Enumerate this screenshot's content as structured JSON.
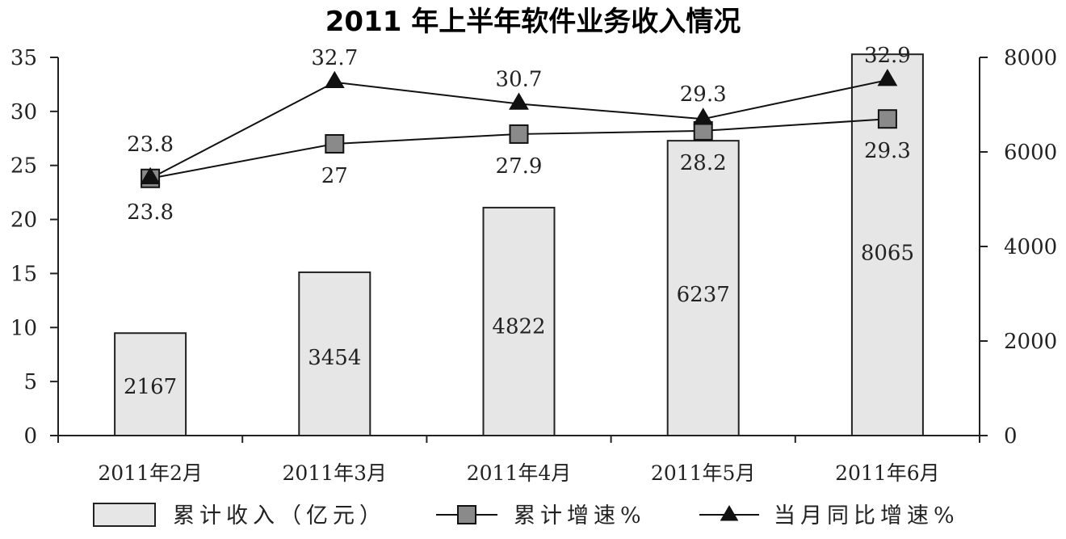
{
  "chart_data": {
    "type": "bar",
    "title": "2011 年上半年软件业务收入情况",
    "categories": [
      "2011年2月",
      "2011年3月",
      "2011年4月",
      "2011年5月",
      "2011年6月"
    ],
    "left_axis": {
      "range": [
        0,
        35
      ],
      "ticks": [
        0,
        5,
        10,
        15,
        20,
        25,
        30,
        35
      ]
    },
    "right_axis": {
      "range": [
        0,
        8000
      ],
      "ticks": [
        0,
        2000,
        4000,
        6000,
        8000
      ]
    },
    "series": [
      {
        "name": "累计收入（亿元）",
        "type": "bar",
        "axis": "right",
        "values": [
          2167,
          3454,
          4822,
          6237,
          8065
        ]
      },
      {
        "name": "累计增速%",
        "type": "line",
        "marker": "square",
        "axis": "left",
        "values": [
          23.8,
          27,
          27.9,
          28.2,
          29.3
        ],
        "labels": [
          "23.8",
          "27",
          "27.9",
          "28.2",
          "29.3"
        ]
      },
      {
        "name": "当月同比增速%",
        "type": "line",
        "marker": "triangle",
        "axis": "left",
        "values": [
          23.8,
          32.7,
          30.7,
          29.3,
          32.9
        ],
        "labels": [
          "23.8",
          "32.7",
          "30.7",
          "29.3",
          "32.9"
        ]
      }
    ],
    "legend_position": "bottom",
    "grid": false
  }
}
